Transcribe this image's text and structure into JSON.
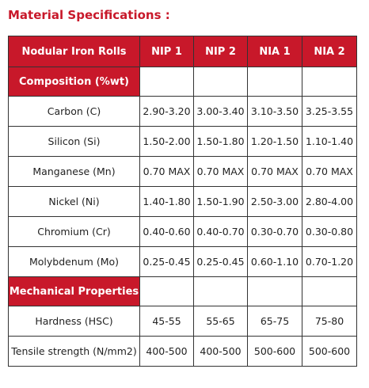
{
  "title": "Material Specifications :",
  "table": {
    "headers": [
      "Nodular Iron Rolls",
      "NIP 1",
      "NIP 2",
      "NIA 1",
      "NIA 2"
    ],
    "sections": [
      {
        "name": "Composition (%wt)",
        "rows": [
          {
            "label": "Carbon (C)",
            "values": [
              "2.90-3.20",
              "3.00-3.40",
              "3.10-3.50",
              "3.25-3.55"
            ]
          },
          {
            "label": "Silicon (Si)",
            "values": [
              "1.50-2.00",
              "1.50-1.80",
              "1.20-1.50",
              "1.10-1.40"
            ]
          },
          {
            "label": "Manganese (Mn)",
            "values": [
              "0.70 MAX",
              "0.70 MAX",
              "0.70 MAX",
              "0.70 MAX"
            ]
          },
          {
            "label": "Nickel (Ni)",
            "values": [
              "1.40-1.80",
              "1.50-1.90",
              "2.50-3.00",
              "2.80-4.00"
            ]
          },
          {
            "label": "Chromium (Cr)",
            "values": [
              "0.40-0.60",
              "0.40-0.70",
              "0.30-0.70",
              "0.30-0.80"
            ]
          },
          {
            "label": "Molybdenum (Mo)",
            "values": [
              "0.25-0.45",
              "0.25-0.45",
              "0.60-1.10",
              "0.70-1.20"
            ]
          }
        ]
      },
      {
        "name": "Mechanical Properties",
        "rows": [
          {
            "label": "Hardness (HSC)",
            "values": [
              "45-55",
              "55-65",
              "65-75",
              "75-80"
            ]
          },
          {
            "label": "Tensile strength (N/mm2)",
            "values": [
              "400-500",
              "400-500",
              "500-600",
              "500-600"
            ]
          }
        ]
      }
    ]
  },
  "colors": {
    "accent": "#c8182a",
    "border": "#333333",
    "text": "#222222"
  }
}
